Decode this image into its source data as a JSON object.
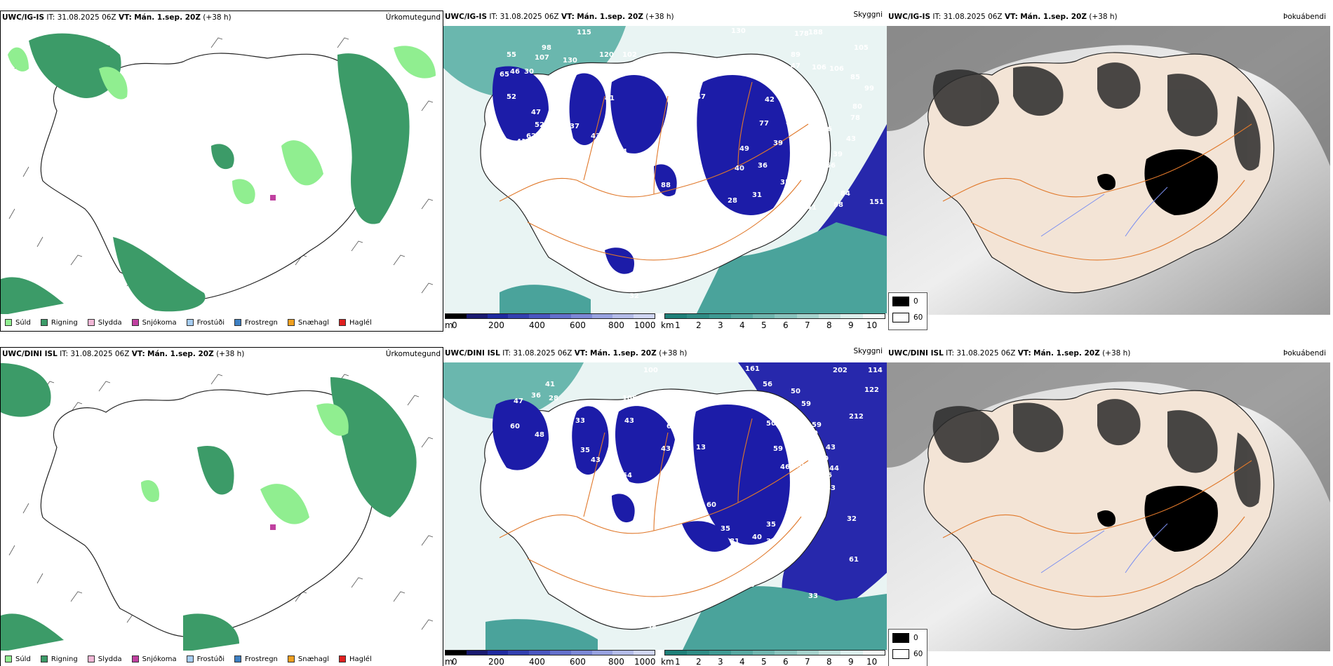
{
  "rows": [
    {
      "model": "UWC/IG-IS",
      "issue_label": "IT:",
      "issue_time": "31.08.2025 06Z",
      "valid_label": "VT:",
      "valid_time": "Mán. 1.sep. 20Z",
      "lead": "(+38 h)",
      "visibility_numbers": [
        "115",
        "130",
        "178",
        "188",
        "105",
        "98",
        "107",
        "130",
        "120",
        "102",
        "55",
        "46",
        "30",
        "65",
        "113",
        "110",
        "59",
        "58",
        "89",
        "47",
        "106",
        "106",
        "85",
        "99",
        "52",
        "34",
        "41",
        "31",
        "47",
        "42",
        "54",
        "37",
        "80",
        "78",
        "47",
        "52",
        "37",
        "43",
        "35",
        "77",
        "52",
        "76",
        "43",
        "62",
        "41",
        "65",
        "34",
        "48",
        "50",
        "49",
        "39",
        "37",
        "55",
        "39",
        "40",
        "56",
        "75",
        "36",
        "40",
        "58",
        "43",
        "88",
        "58",
        "43",
        "63",
        "44",
        "35",
        "31",
        "35",
        "84",
        "45",
        "28",
        "41",
        "88",
        "151",
        "85",
        "29",
        "62",
        "34",
        "32"
      ]
    },
    {
      "model": "UWC/DINI ISL",
      "issue_label": "IT:",
      "issue_time": "31.08.2025 06Z",
      "valid_label": "VT:",
      "valid_time": "Mán. 1.sep. 20Z",
      "lead": "(+38 h)",
      "visibility_numbers": [
        "100",
        "161",
        "202",
        "114",
        "41",
        "36",
        "28",
        "105",
        "56",
        "51",
        "50",
        "122",
        "47",
        "33",
        "43",
        "47",
        "59",
        "60",
        "48",
        "58",
        "35",
        "69",
        "50",
        "44",
        "59",
        "212",
        "59",
        "52",
        "51",
        "43",
        "40",
        "43",
        "59",
        "57",
        "43",
        "60",
        "69",
        "13",
        "45",
        "50",
        "43",
        "54",
        "38",
        "43",
        "43",
        "40",
        "46",
        "56",
        "39",
        "43",
        "43",
        "44",
        "35",
        "60",
        "35",
        "40",
        "35",
        "32",
        "81",
        "60",
        "61",
        "181",
        "35",
        "33",
        "101",
        "61",
        "98",
        "35"
      ]
    }
  ],
  "titles": {
    "precip": "Úrkomutegund",
    "visibility": "Skyggni",
    "dewpoint": "Þokuábendi"
  },
  "precip_legend": [
    {
      "label": "Súld",
      "color": "#90ee90"
    },
    {
      "label": "Rigning",
      "color": "#3c9b68"
    },
    {
      "label": "Slydda",
      "color": "#f2b7d6"
    },
    {
      "label": "Snjókoma",
      "color": "#c040a0"
    },
    {
      "label": "Frostúði",
      "color": "#a6cdf2"
    },
    {
      "label": "Frostregn",
      "color": "#3d7fc2"
    },
    {
      "label": "Snæhagl",
      "color": "#f0a020"
    },
    {
      "label": "Haglél",
      "color": "#e02020"
    }
  ],
  "elevation_scale": {
    "unit": "m",
    "ticks": [
      "0",
      "200",
      "400",
      "600",
      "800",
      "1000"
    ],
    "colors": [
      "#000000",
      "#1a1a70",
      "#1f2aa0",
      "#3340b0",
      "#4a56c0",
      "#6470cc",
      "#7c88d6",
      "#98a2e0",
      "#b4bce8",
      "#d0d6f2"
    ]
  },
  "visibility_scale": {
    "unit": "km",
    "ticks": [
      "1",
      "2",
      "3",
      "4",
      "5",
      "6",
      "7",
      "8",
      "9",
      "10"
    ],
    "colors": [
      "#1e7f78",
      "#2e8c85",
      "#3f9a93",
      "#56a8a1",
      "#6fb6af",
      "#8ac4be",
      "#a6d3cd",
      "#c2e1dc",
      "#dcefec",
      "#f4faf9"
    ]
  },
  "cloud_legend": [
    {
      "label": "0",
      "color": "#000000"
    },
    {
      "label": "60",
      "color": "#ffffff"
    }
  ],
  "colors": {
    "rain": "#3c9b68",
    "drizzle": "#90ee90",
    "sea_blue": "#1c1ca8",
    "vis_teal": "#4aa39b",
    "land_cream": "#f3e4d6",
    "road_orange": "#e0782a"
  }
}
